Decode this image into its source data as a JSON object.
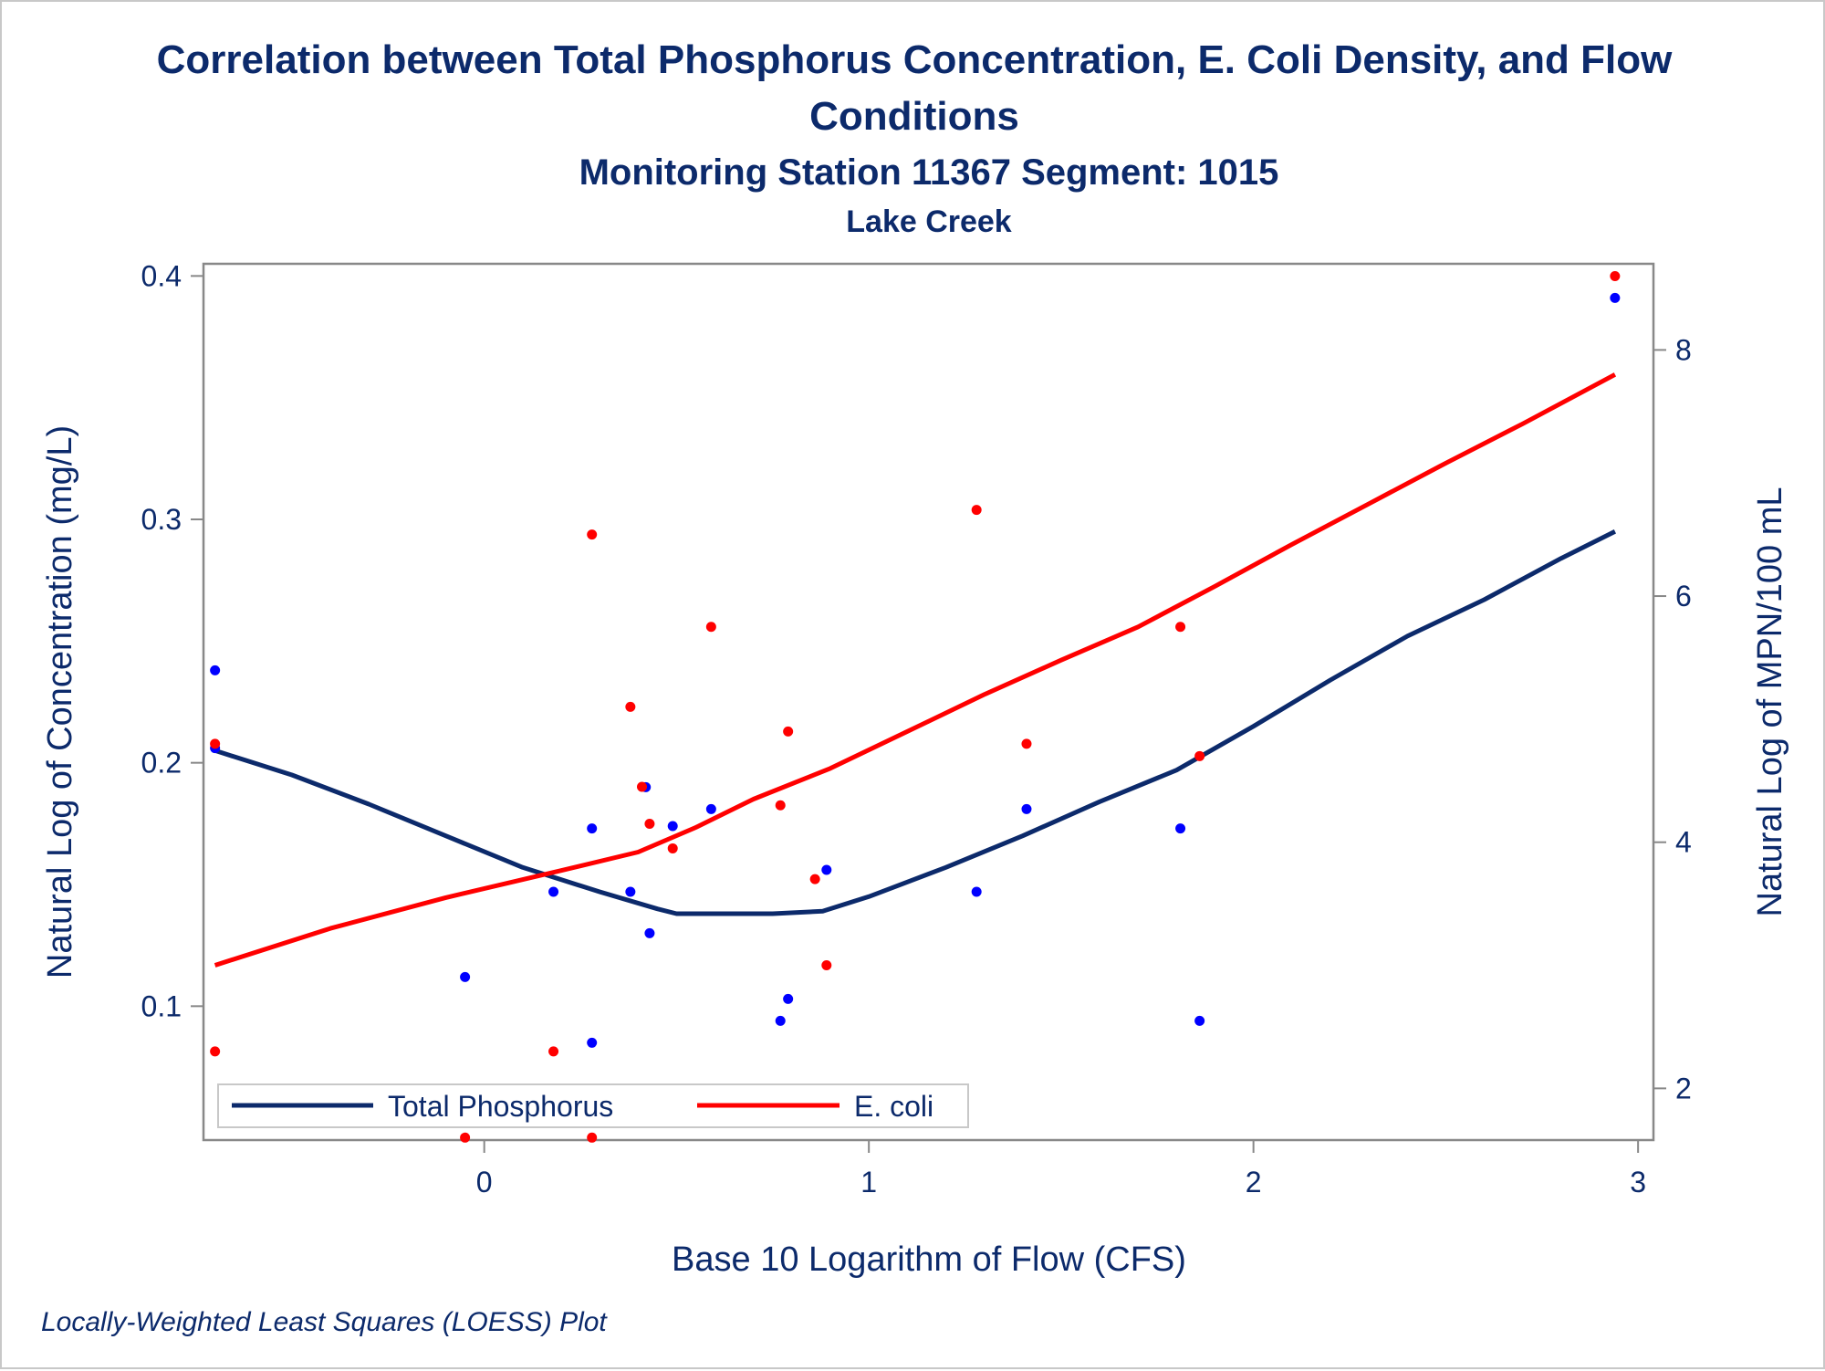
{
  "chart_data": {
    "type": "scatter",
    "title": "Correlation between Total Phosphorus Concentration, E. Coli Density, and Flow",
    "title_line2": "Conditions",
    "subtitle": "Monitoring Station 11367 Segment: 1015",
    "subtitle2": "Lake Creek",
    "footnote": "Locally-Weighted Least Squares (LOESS) Plot",
    "xlabel": "Base 10 Logarithm of Flow (CFS)",
    "ylabel_left": "Natural Log of Concentration (mg/L)",
    "ylabel_right": "Natural Log of MPN/100 mL",
    "xlim": [
      -0.73,
      3.04
    ],
    "ylim_left": [
      0.045,
      0.405
    ],
    "ylim_right": [
      1.58,
      8.7
    ],
    "x_ticks": [
      0,
      1,
      2,
      3
    ],
    "x_tick_labels": [
      "0",
      "1",
      "2",
      "3"
    ],
    "y_left_ticks": [
      0.1,
      0.2,
      0.3,
      0.4
    ],
    "y_left_tick_labels": [
      "0.1",
      "0.2",
      "0.3",
      "0.4"
    ],
    "y_right_ticks": [
      2,
      4,
      6,
      8
    ],
    "y_right_tick_labels": [
      "2",
      "4",
      "6",
      "8"
    ],
    "legend_position": "bottom-left",
    "colors": {
      "phosphorus": "#0c2a6b",
      "ecoli": "#ff0000",
      "phosphorus_points": "#0000ff",
      "ecoli_points": "#ff0000",
      "text": "#0c2a6b",
      "axis": "#888888"
    },
    "series": [
      {
        "name": "Total Phosphorus",
        "axis": "left",
        "points": [
          [
            -0.7,
            0.238
          ],
          [
            -0.7,
            0.206
          ],
          [
            -0.05,
            0.112
          ],
          [
            0.18,
            0.147
          ],
          [
            0.28,
            0.173
          ],
          [
            0.28,
            0.085
          ],
          [
            0.38,
            0.147
          ],
          [
            0.42,
            0.19
          ],
          [
            0.43,
            0.13
          ],
          [
            0.49,
            0.174
          ],
          [
            0.59,
            0.181
          ],
          [
            0.77,
            0.094
          ],
          [
            0.79,
            0.103
          ],
          [
            0.86,
            0.057
          ],
          [
            0.89,
            0.156
          ],
          [
            1.28,
            0.147
          ],
          [
            1.41,
            0.181
          ],
          [
            1.81,
            0.173
          ],
          [
            1.86,
            0.094
          ],
          [
            2.94,
            0.391
          ]
        ],
        "loess": [
          [
            -0.7,
            0.205
          ],
          [
            -0.5,
            0.195
          ],
          [
            -0.3,
            0.183
          ],
          [
            -0.1,
            0.17
          ],
          [
            0.1,
            0.157
          ],
          [
            0.3,
            0.147
          ],
          [
            0.45,
            0.14
          ],
          [
            0.5,
            0.138
          ],
          [
            0.6,
            0.138
          ],
          [
            0.75,
            0.138
          ],
          [
            0.88,
            0.139
          ],
          [
            1.0,
            0.145
          ],
          [
            1.2,
            0.157
          ],
          [
            1.4,
            0.17
          ],
          [
            1.6,
            0.184
          ],
          [
            1.8,
            0.197
          ],
          [
            2.0,
            0.215
          ],
          [
            2.2,
            0.234
          ],
          [
            2.4,
            0.252
          ],
          [
            2.6,
            0.267
          ],
          [
            2.8,
            0.284
          ],
          [
            2.94,
            0.295
          ]
        ]
      },
      {
        "name": "E. coli",
        "axis": "right",
        "points": [
          [
            -0.7,
            4.8
          ],
          [
            -0.7,
            2.3
          ],
          [
            -0.05,
            1.6
          ],
          [
            0.18,
            2.3
          ],
          [
            0.28,
            6.5
          ],
          [
            0.28,
            1.6
          ],
          [
            0.38,
            5.1
          ],
          [
            0.41,
            4.45
          ],
          [
            0.43,
            4.15
          ],
          [
            0.49,
            3.95
          ],
          [
            0.59,
            5.75
          ],
          [
            0.77,
            4.3
          ],
          [
            0.79,
            4.9
          ],
          [
            0.86,
            3.7
          ],
          [
            0.89,
            3.0
          ],
          [
            1.28,
            6.7
          ],
          [
            1.41,
            4.8
          ],
          [
            1.81,
            5.75
          ],
          [
            1.86,
            4.7
          ],
          [
            2.94,
            8.6
          ]
        ],
        "loess": [
          [
            -0.7,
            3.0
          ],
          [
            -0.4,
            3.3
          ],
          [
            -0.1,
            3.55
          ],
          [
            0.2,
            3.77
          ],
          [
            0.4,
            3.92
          ],
          [
            0.55,
            4.12
          ],
          [
            0.7,
            4.35
          ],
          [
            0.9,
            4.6
          ],
          [
            1.1,
            4.9
          ],
          [
            1.3,
            5.2
          ],
          [
            1.5,
            5.48
          ],
          [
            1.7,
            5.75
          ],
          [
            1.9,
            6.08
          ],
          [
            2.1,
            6.42
          ],
          [
            2.3,
            6.75
          ],
          [
            2.5,
            7.08
          ],
          [
            2.7,
            7.4
          ],
          [
            2.94,
            7.8
          ]
        ]
      }
    ]
  }
}
